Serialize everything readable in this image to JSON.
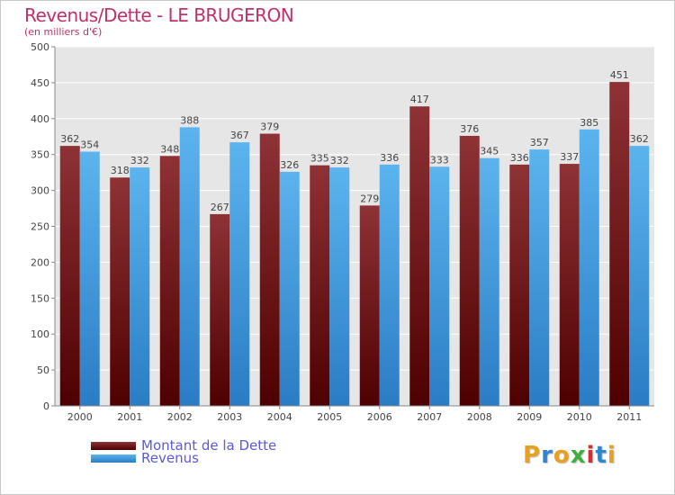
{
  "header": {
    "title": "Revenus/Dette - LE BRUGERON",
    "subtitle": "(en milliers d'€)"
  },
  "legend": [
    {
      "label": "Montant de la Dette",
      "color": "#8b1a1a"
    },
    {
      "label": "Revenus",
      "color": "#3a9ee6"
    }
  ],
  "logo": {
    "text": "Proxiti",
    "letters": [
      "P",
      "r",
      "o",
      "x",
      "i",
      "t",
      "i"
    ],
    "colors": [
      "#e8a020",
      "#2e86d0",
      "#e8a020",
      "#3fae3f",
      "#d0302e",
      "#2e86d0",
      "#e8a020"
    ]
  },
  "chart_data": {
    "type": "bar",
    "title": "Revenus/Dette - LE BRUGERON",
    "subtitle": "(en milliers d'€)",
    "categories": [
      "2000",
      "2001",
      "2002",
      "2003",
      "2004",
      "2005",
      "2006",
      "2007",
      "2008",
      "2009",
      "2010",
      "2011"
    ],
    "series": [
      {
        "name": "Montant de la Dette",
        "color": "#8b1a1a",
        "values": [
          362,
          318,
          348,
          267,
          379,
          335,
          279,
          417,
          376,
          336,
          337,
          451
        ]
      },
      {
        "name": "Revenus",
        "color": "#3a9ee6",
        "values": [
          354,
          332,
          388,
          367,
          326,
          332,
          336,
          333,
          345,
          357,
          385,
          362
        ]
      }
    ],
    "ylim": [
      0,
      500
    ],
    "yticks": [
      0,
      50,
      100,
      150,
      200,
      250,
      300,
      350,
      400,
      450,
      500
    ],
    "grid": true,
    "legend_position": "bottom-left"
  }
}
